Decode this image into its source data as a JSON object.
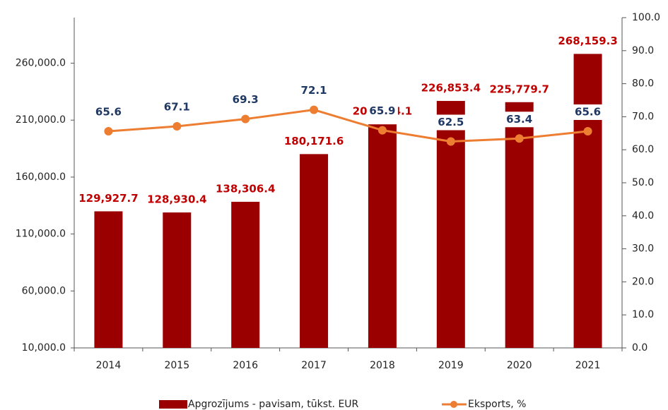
{
  "chart_data": {
    "type": "bar-line",
    "categories": [
      "2014",
      "2015",
      "2016",
      "2017",
      "2018",
      "2019",
      "2020",
      "2021"
    ],
    "series": [
      {
        "name": "Apgrozījums - pavisam, tūkst. EUR",
        "color": "#9b0000",
        "type": "bar",
        "values": [
          129927.7,
          128930.4,
          138306.4,
          180171.6,
          206304.1,
          226853.4,
          225779.7,
          268159.3
        ],
        "value_labels": [
          "129,927.7",
          "128,930.4",
          "138,306.4",
          "180,171.6",
          "206,304.1",
          "226,853.4",
          "225,779.7",
          "268,159.3"
        ]
      },
      {
        "name": "Eksports, %",
        "color": "#ed7d31",
        "type": "line",
        "axis": "y2",
        "values": [
          65.6,
          67.1,
          69.3,
          72.1,
          65.9,
          62.5,
          63.4,
          65.6
        ]
      }
    ],
    "ylim": [
      10000,
      300000
    ],
    "yticks": [
      {
        "value": 10000,
        "label": "10,000.0"
      },
      {
        "value": 60000,
        "label": "60,000.0"
      },
      {
        "value": 110000,
        "label": "110,000.0"
      },
      {
        "value": 160000,
        "label": "160,000.0"
      },
      {
        "value": 210000,
        "label": "210,000.0"
      },
      {
        "value": 260000,
        "label": "260,000.0"
      }
    ],
    "y2lim": [
      0,
      100
    ],
    "y2ticks": [
      {
        "value": 0,
        "label": "0.0"
      },
      {
        "value": 10,
        "label": "10.0"
      },
      {
        "value": 20,
        "label": "20.0"
      },
      {
        "value": 30,
        "label": "30.0"
      },
      {
        "value": 40,
        "label": "40.0"
      },
      {
        "value": 50,
        "label": "50.0"
      },
      {
        "value": 60,
        "label": "60.0"
      },
      {
        "value": 70,
        "label": "70.0"
      },
      {
        "value": 80,
        "label": "80.0"
      },
      {
        "value": 90,
        "label": "90.0"
      },
      {
        "value": 100,
        "label": "100.0"
      }
    ],
    "legend": "bottom"
  }
}
